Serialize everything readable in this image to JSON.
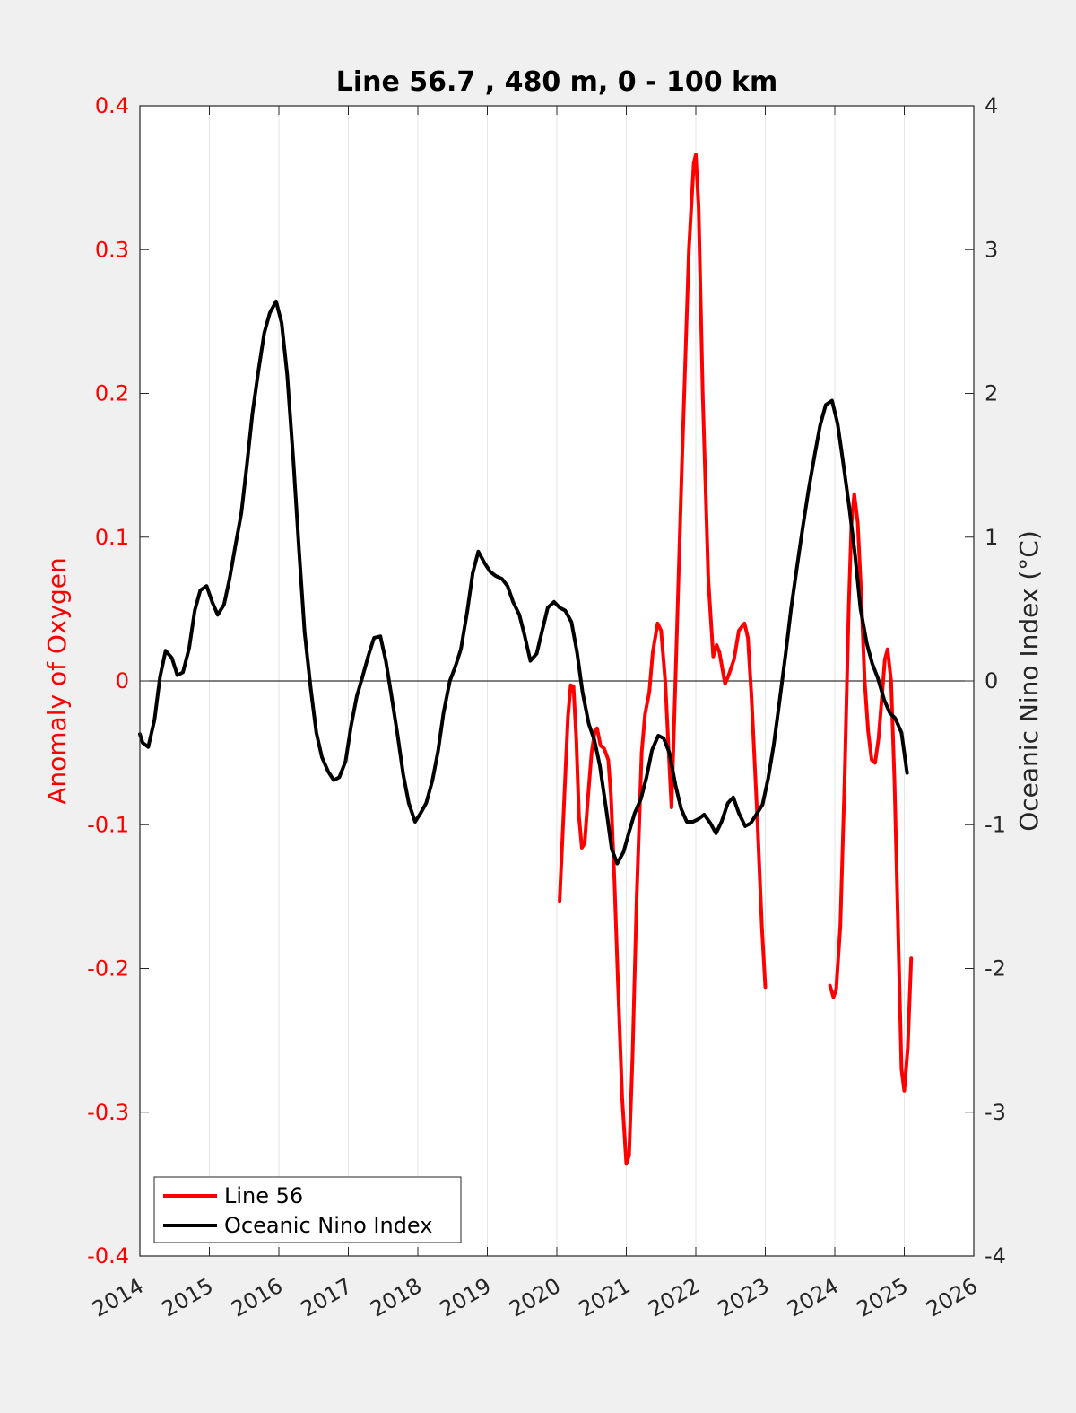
{
  "colors": {
    "figure_background": "#f0f0f0",
    "axes_background": "#ffffff",
    "line56": "#ff0000",
    "oni": "#000000",
    "left_axis": "#ff0000",
    "right_axis": "#262626",
    "grid": "#e6e6e6"
  },
  "chart_data": {
    "type": "line",
    "title": "Line 56.7 , 480 m, 0 - 100 km",
    "xlabel": "",
    "xlim": [
      2014,
      2026
    ],
    "x_ticks": [
      "2014",
      "2015",
      "2016",
      "2017",
      "2018",
      "2019",
      "2020",
      "2021",
      "2022",
      "2023",
      "2024",
      "2025",
      "2026"
    ],
    "grid": "vertical",
    "zero_line": true,
    "legend": {
      "placement": "bottom-left"
    },
    "y_left": {
      "label": "Anomaly of Oxygen",
      "lim": [
        -0.4,
        0.4
      ],
      "ticks": [
        "0.4",
        "0.3",
        "0.2",
        "0.1",
        "0",
        "-0.1",
        "-0.2",
        "-0.3",
        "-0.4"
      ]
    },
    "y_right": {
      "label": "Oceanic Nino Index (°C)",
      "lim": [
        -4,
        4
      ],
      "ticks": [
        "4",
        "3",
        "2",
        "1",
        "0",
        "-1",
        "-2",
        "-3",
        "-4"
      ]
    },
    "series": [
      {
        "name": "Line 56",
        "axis": "left",
        "segments": [
          [
            [
              2020.04,
              -0.153
            ],
            [
              2020.1,
              -0.09
            ],
            [
              2020.16,
              -0.025
            ],
            [
              2020.2,
              -0.003
            ],
            [
              2020.24,
              -0.004
            ],
            [
              2020.28,
              -0.04
            ],
            [
              2020.32,
              -0.095
            ],
            [
              2020.36,
              -0.116
            ],
            [
              2020.4,
              -0.113
            ],
            [
              2020.45,
              -0.08
            ],
            [
              2020.5,
              -0.05
            ],
            [
              2020.55,
              -0.034
            ],
            [
              2020.58,
              -0.033
            ],
            [
              2020.63,
              -0.045
            ],
            [
              2020.68,
              -0.047
            ],
            [
              2020.74,
              -0.055
            ],
            [
              2020.78,
              -0.08
            ],
            [
              2020.83,
              -0.14
            ],
            [
              2020.88,
              -0.21
            ],
            [
              2020.94,
              -0.29
            ],
            [
              2021.0,
              -0.336
            ],
            [
              2021.04,
              -0.33
            ],
            [
              2021.09,
              -0.26
            ],
            [
              2021.15,
              -0.15
            ],
            [
              2021.22,
              -0.05
            ],
            [
              2021.27,
              -0.023
            ],
            [
              2021.33,
              -0.008
            ],
            [
              2021.38,
              0.02
            ],
            [
              2021.45,
              0.04
            ],
            [
              2021.5,
              0.035
            ],
            [
              2021.56,
              0.0
            ],
            [
              2021.61,
              -0.05
            ],
            [
              2021.65,
              -0.088
            ],
            [
              2021.7,
              -0.01
            ],
            [
              2021.8,
              0.15
            ],
            [
              2021.9,
              0.3
            ],
            [
              2021.97,
              0.36
            ],
            [
              2022.0,
              0.366
            ],
            [
              2022.04,
              0.33
            ],
            [
              2022.1,
              0.2
            ],
            [
              2022.18,
              0.07
            ],
            [
              2022.25,
              0.017
            ],
            [
              2022.3,
              0.025
            ],
            [
              2022.34,
              0.02
            ],
            [
              2022.42,
              -0.002
            ],
            [
              2022.48,
              0.005
            ],
            [
              2022.55,
              0.015
            ],
            [
              2022.62,
              0.035
            ],
            [
              2022.7,
              0.04
            ],
            [
              2022.75,
              0.03
            ],
            [
              2022.8,
              -0.01
            ],
            [
              2022.88,
              -0.09
            ],
            [
              2022.95,
              -0.17
            ],
            [
              2023.0,
              -0.213
            ]
          ],
          [
            [
              2023.93,
              -0.212
            ],
            [
              2023.98,
              -0.22
            ],
            [
              2024.02,
              -0.215
            ],
            [
              2024.08,
              -0.17
            ],
            [
              2024.14,
              -0.07
            ],
            [
              2024.2,
              0.05
            ],
            [
              2024.24,
              0.11
            ],
            [
              2024.28,
              0.13
            ],
            [
              2024.33,
              0.11
            ],
            [
              2024.38,
              0.06
            ],
            [
              2024.43,
              0.0
            ],
            [
              2024.48,
              -0.035
            ],
            [
              2024.53,
              -0.055
            ],
            [
              2024.58,
              -0.057
            ],
            [
              2024.63,
              -0.04
            ],
            [
              2024.68,
              -0.01
            ],
            [
              2024.72,
              0.015
            ],
            [
              2024.76,
              0.022
            ],
            [
              2024.81,
              0.0
            ],
            [
              2024.86,
              -0.07
            ],
            [
              2024.91,
              -0.17
            ],
            [
              2024.96,
              -0.27
            ],
            [
              2025.0,
              -0.285
            ],
            [
              2025.05,
              -0.255
            ],
            [
              2025.1,
              -0.193
            ]
          ]
        ]
      },
      {
        "name": "Oceanic Nino Index",
        "axis": "right",
        "segments": [
          [
            [
              2014.0,
              -0.37
            ],
            [
              2014.04,
              -0.43
            ],
            [
              2014.12,
              -0.46
            ],
            [
              2014.21,
              -0.27
            ],
            [
              2014.29,
              0.03
            ],
            [
              2014.37,
              0.21
            ],
            [
              2014.46,
              0.16
            ],
            [
              2014.54,
              0.04
            ],
            [
              2014.62,
              0.06
            ],
            [
              2014.71,
              0.23
            ],
            [
              2014.79,
              0.49
            ],
            [
              2014.87,
              0.63
            ],
            [
              2014.96,
              0.66
            ],
            [
              2015.04,
              0.55
            ],
            [
              2015.12,
              0.46
            ],
            [
              2015.21,
              0.53
            ],
            [
              2015.29,
              0.71
            ],
            [
              2015.37,
              0.93
            ],
            [
              2015.46,
              1.17
            ],
            [
              2015.54,
              1.5
            ],
            [
              2015.62,
              1.86
            ],
            [
              2015.71,
              2.17
            ],
            [
              2015.79,
              2.42
            ],
            [
              2015.87,
              2.56
            ],
            [
              2015.96,
              2.64
            ],
            [
              2016.04,
              2.49
            ],
            [
              2016.12,
              2.13
            ],
            [
              2016.21,
              1.52
            ],
            [
              2016.29,
              0.91
            ],
            [
              2016.37,
              0.34
            ],
            [
              2016.46,
              -0.06
            ],
            [
              2016.54,
              -0.36
            ],
            [
              2016.62,
              -0.53
            ],
            [
              2016.71,
              -0.63
            ],
            [
              2016.79,
              -0.69
            ],
            [
              2016.87,
              -0.67
            ],
            [
              2016.96,
              -0.56
            ],
            [
              2017.04,
              -0.31
            ],
            [
              2017.12,
              -0.11
            ],
            [
              2017.21,
              0.04
            ],
            [
              2017.29,
              0.18
            ],
            [
              2017.37,
              0.3
            ],
            [
              2017.46,
              0.31
            ],
            [
              2017.54,
              0.14
            ],
            [
              2017.62,
              -0.1
            ],
            [
              2017.71,
              -0.38
            ],
            [
              2017.79,
              -0.65
            ],
            [
              2017.87,
              -0.85
            ],
            [
              2017.96,
              -0.98
            ],
            [
              2018.04,
              -0.92
            ],
            [
              2018.12,
              -0.85
            ],
            [
              2018.21,
              -0.69
            ],
            [
              2018.29,
              -0.49
            ],
            [
              2018.37,
              -0.22
            ],
            [
              2018.46,
              0.0
            ],
            [
              2018.54,
              0.1
            ],
            [
              2018.62,
              0.22
            ],
            [
              2018.71,
              0.48
            ],
            [
              2018.79,
              0.75
            ],
            [
              2018.87,
              0.9
            ],
            [
              2018.96,
              0.82
            ],
            [
              2019.04,
              0.76
            ],
            [
              2019.12,
              0.73
            ],
            [
              2019.21,
              0.71
            ],
            [
              2019.29,
              0.66
            ],
            [
              2019.37,
              0.55
            ],
            [
              2019.46,
              0.46
            ],
            [
              2019.54,
              0.31
            ],
            [
              2019.62,
              0.14
            ],
            [
              2019.71,
              0.19
            ],
            [
              2019.79,
              0.35
            ],
            [
              2019.87,
              0.51
            ],
            [
              2019.96,
              0.55
            ],
            [
              2020.04,
              0.51
            ],
            [
              2020.12,
              0.49
            ],
            [
              2020.21,
              0.41
            ],
            [
              2020.29,
              0.2
            ],
            [
              2020.37,
              -0.08
            ],
            [
              2020.46,
              -0.3
            ],
            [
              2020.54,
              -0.41
            ],
            [
              2020.62,
              -0.59
            ],
            [
              2020.71,
              -0.89
            ],
            [
              2020.79,
              -1.17
            ],
            [
              2020.87,
              -1.27
            ],
            [
              2020.96,
              -1.19
            ],
            [
              2021.04,
              -1.05
            ],
            [
              2021.12,
              -0.92
            ],
            [
              2021.21,
              -0.82
            ],
            [
              2021.29,
              -0.67
            ],
            [
              2021.37,
              -0.48
            ],
            [
              2021.46,
              -0.38
            ],
            [
              2021.54,
              -0.4
            ],
            [
              2021.62,
              -0.5
            ],
            [
              2021.71,
              -0.73
            ],
            [
              2021.79,
              -0.89
            ],
            [
              2021.87,
              -0.98
            ],
            [
              2021.96,
              -0.98
            ],
            [
              2022.04,
              -0.96
            ],
            [
              2022.12,
              -0.93
            ],
            [
              2022.21,
              -0.99
            ],
            [
              2022.29,
              -1.06
            ],
            [
              2022.37,
              -0.98
            ],
            [
              2022.46,
              -0.85
            ],
            [
              2022.54,
              -0.81
            ],
            [
              2022.62,
              -0.92
            ],
            [
              2022.71,
              -1.01
            ],
            [
              2022.79,
              -0.99
            ],
            [
              2022.87,
              -0.93
            ],
            [
              2022.96,
              -0.86
            ],
            [
              2023.04,
              -0.68
            ],
            [
              2023.12,
              -0.45
            ],
            [
              2023.21,
              -0.12
            ],
            [
              2023.29,
              0.18
            ],
            [
              2023.37,
              0.5
            ],
            [
              2023.46,
              0.81
            ],
            [
              2023.54,
              1.07
            ],
            [
              2023.62,
              1.32
            ],
            [
              2023.71,
              1.57
            ],
            [
              2023.79,
              1.78
            ],
            [
              2023.87,
              1.92
            ],
            [
              2023.96,
              1.95
            ],
            [
              2024.04,
              1.79
            ],
            [
              2024.12,
              1.52
            ],
            [
              2024.21,
              1.2
            ],
            [
              2024.29,
              0.88
            ],
            [
              2024.37,
              0.5
            ],
            [
              2024.46,
              0.26
            ],
            [
              2024.54,
              0.12
            ],
            [
              2024.62,
              0.02
            ],
            [
              2024.71,
              -0.13
            ],
            [
              2024.79,
              -0.22
            ],
            [
              2024.87,
              -0.26
            ],
            [
              2024.96,
              -0.36
            ],
            [
              2025.04,
              -0.64
            ]
          ]
        ]
      }
    ]
  }
}
